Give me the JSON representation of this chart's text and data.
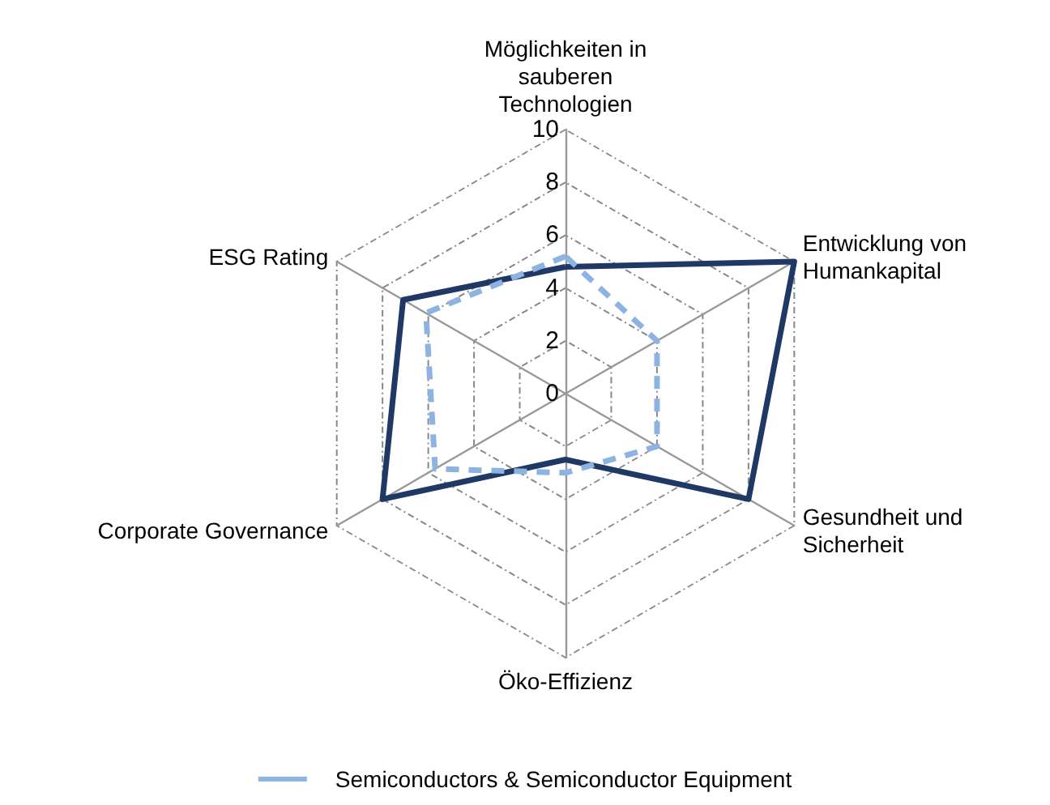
{
  "chart_data": {
    "type": "radar",
    "categories": [
      "Möglichkeiten in sauberen Technologien",
      "Entwicklung von Humankapital",
      "Gesundheit und Sicherheit",
      "Öko-Effizienz",
      "Corporate Governance",
      "ESG Rating"
    ],
    "series": [
      {
        "color": "#1f3864",
        "line_style": "solid",
        "values": [
          4.8,
          10,
          8,
          2.5,
          8,
          7.1
        ]
      },
      {
        "name": "Semiconductors & Semiconductor Equipment",
        "color": "#8db3e2",
        "line_style": "dashed",
        "values": [
          5.2,
          4,
          4,
          3,
          5.7,
          6.1
        ]
      }
    ],
    "ylim": [
      0,
      10
    ],
    "yticks": [
      0,
      2,
      4,
      6,
      8,
      10
    ],
    "grid": true,
    "legend": "bottom",
    "marker": "none"
  }
}
